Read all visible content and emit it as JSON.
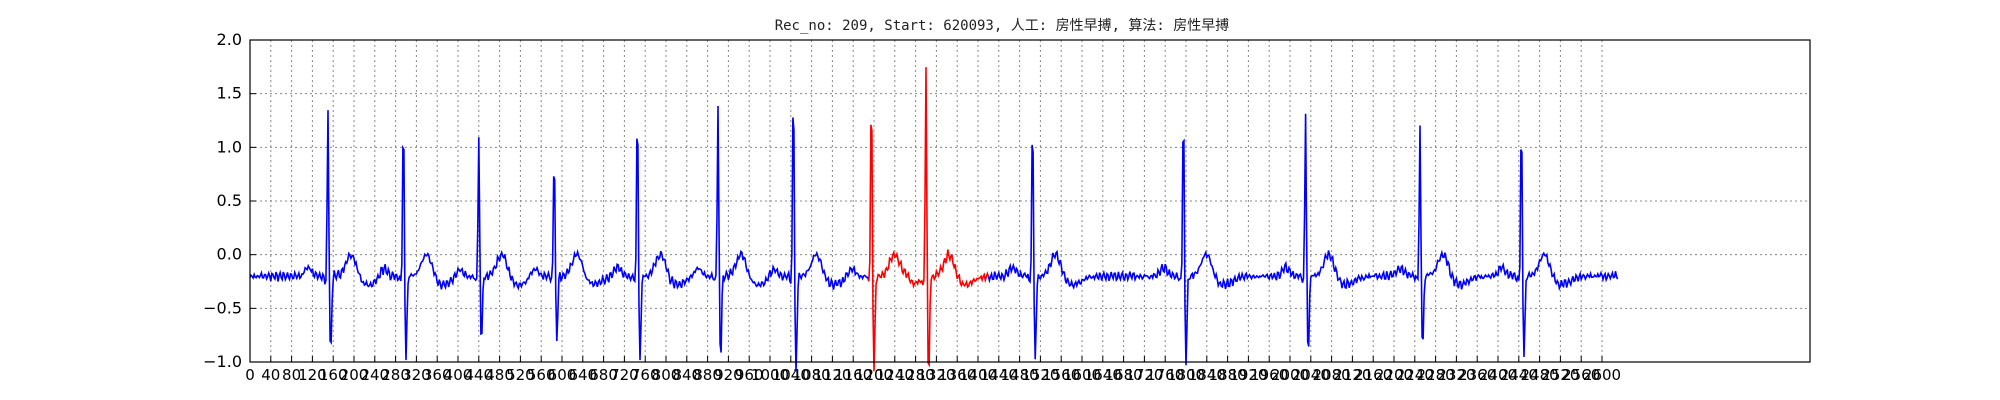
{
  "chart_data": {
    "type": "line",
    "title": "Rec_no: 209, Start: 620093, 人工: 房性早搏, 算法: 房性早搏",
    "xlabel": "",
    "ylabel": "",
    "xlim": [
      0,
      3000
    ],
    "ylim": [
      -1.0,
      2.0
    ],
    "grid": true,
    "y_ticks": [
      -1.0,
      -0.5,
      0.0,
      0.5,
      1.0,
      1.5,
      2.0
    ],
    "y_tick_labels": [
      "−1.0",
      "−0.5",
      "0.0",
      "0.5",
      "1.0",
      "1.5",
      "2.0"
    ],
    "x_ticks": [
      0,
      40,
      80,
      120,
      160,
      200,
      240,
      280,
      320,
      360,
      400,
      440,
      480,
      520,
      560,
      600,
      640,
      680,
      720,
      760,
      800,
      840,
      880,
      920,
      960,
      1000,
      1040,
      1080,
      1120,
      1160,
      1200,
      1240,
      1280,
      1320,
      1360,
      1400,
      1440,
      1480,
      1520,
      1560,
      1600,
      1640,
      1680,
      1720,
      1760,
      1800,
      1840,
      1880,
      1920,
      1960,
      2000,
      2040,
      2080,
      2120,
      2160,
      2200,
      2240,
      2280,
      2320,
      2360,
      2400,
      2440,
      2480,
      2520,
      2560,
      2600
    ],
    "x_tick_labels": [
      "0",
      "40",
      "80",
      "120",
      "160",
      "200",
      "240",
      "280",
      "320",
      "360",
      "400",
      "440",
      "480",
      "520",
      "560",
      "600",
      "640",
      "680",
      "720",
      "760",
      "800",
      "840",
      "880",
      "920",
      "960",
      "1000",
      "1040",
      "1080",
      "1120",
      "1160",
      "1200",
      "1240",
      "1280",
      "1320",
      "1360",
      "1400",
      "1440",
      "1480",
      "1520",
      "1560",
      "1600",
      "1640",
      "1680",
      "1720",
      "1760",
      "1800",
      "1840",
      "1880",
      "1920",
      "1960",
      "2000",
      "2040",
      "2080",
      "2120",
      "2160",
      "2200",
      "2240",
      "2280",
      "2320",
      "2360",
      "2400",
      "2440",
      "2480",
      "2520",
      "2560",
      "2600"
    ],
    "x_range_drawn": [
      0,
      2630
    ],
    "r_peaks": [
      {
        "x": 150,
        "amp": 1.22
      },
      {
        "x": 295,
        "amp": 1.22
      },
      {
        "x": 440,
        "amp": 1.02
      },
      {
        "x": 585,
        "amp": 0.98
      },
      {
        "x": 745,
        "amp": 1.3
      },
      {
        "x": 900,
        "amp": 1.25
      },
      {
        "x": 1045,
        "amp": 1.48
      },
      {
        "x": 1195,
        "amp": 1.42
      },
      {
        "x": 1300,
        "amp": 1.55
      },
      {
        "x": 1505,
        "amp": 1.25
      },
      {
        "x": 1795,
        "amp": 1.3
      },
      {
        "x": 2030,
        "amp": 1.2
      },
      {
        "x": 2250,
        "amp": 1.1
      },
      {
        "x": 2445,
        "amp": 1.2
      }
    ],
    "series": [
      {
        "color": "#0000ff"
      },
      {
        "color": "#ff0000",
        "x_range": [
          1190,
          1420
        ]
      }
    ]
  }
}
